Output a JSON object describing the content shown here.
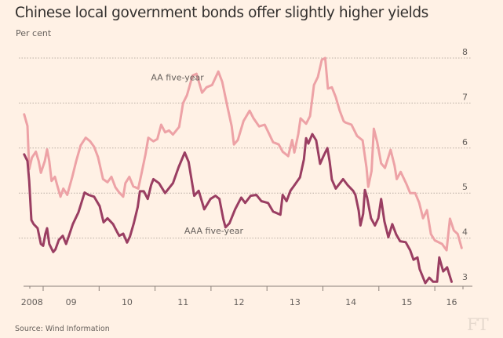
{
  "header": {
    "title": "Chinese local government bonds offer slightly higher yields",
    "subtitle": "Per cent"
  },
  "footer": {
    "source": "Source: Wind Information",
    "logo": "FT"
  },
  "chart_data": {
    "type": "line",
    "title": "Chinese local government bonds offer slightly higher yields",
    "subtitle": "Per cent",
    "xlabel": "",
    "ylabel": "Per cent",
    "ylim": [
      3,
      8
    ],
    "xlim": [
      2008.6,
      2016.75
    ],
    "y_ticks": [
      "3",
      "4",
      "5",
      "6",
      "7",
      "8"
    ],
    "y_tick_values": [
      3,
      4,
      5,
      6,
      7,
      8
    ],
    "x_ticks": [
      {
        "label": "2008",
        "at": 2008.8
      },
      {
        "label": "09",
        "at": 2009.5
      },
      {
        "label": "10",
        "at": 2010.5
      },
      {
        "label": "11",
        "at": 2011.5
      },
      {
        "label": "12",
        "at": 2012.5
      },
      {
        "label": "13",
        "at": 2013.5
      },
      {
        "label": "14",
        "at": 2014.5
      },
      {
        "label": "15",
        "at": 2015.5
      },
      {
        "label": "16",
        "at": 2016.3
      }
    ],
    "year_boundaries": [
      2009,
      2010,
      2011,
      2012,
      2013,
      2014,
      2015,
      2016
    ],
    "grid": true,
    "legend": "inline labels",
    "colors": {
      "AA five-year": "#eda2a6",
      "AAA five-year": "#9a3e62",
      "grid": "#b9aea4",
      "axis": "#8a8079"
    },
    "series": [
      {
        "name": "AA five-year",
        "label_at": [
          2011.4,
          7.5
        ],
        "points": [
          [
            2008.66,
            6.75
          ],
          [
            2008.72,
            6.49
          ],
          [
            2008.75,
            5.53
          ],
          [
            2008.8,
            5.79
          ],
          [
            2008.87,
            5.92
          ],
          [
            2008.92,
            5.71
          ],
          [
            2008.96,
            5.45
          ],
          [
            2009.03,
            5.71
          ],
          [
            2009.07,
            5.97
          ],
          [
            2009.11,
            5.71
          ],
          [
            2009.15,
            5.27
          ],
          [
            2009.21,
            5.36
          ],
          [
            2009.25,
            5.18
          ],
          [
            2009.31,
            4.92
          ],
          [
            2009.36,
            5.1
          ],
          [
            2009.43,
            4.96
          ],
          [
            2009.52,
            5.36
          ],
          [
            2009.59,
            5.71
          ],
          [
            2009.67,
            6.06
          ],
          [
            2009.76,
            6.23
          ],
          [
            2009.84,
            6.15
          ],
          [
            2009.91,
            6.03
          ],
          [
            2009.98,
            5.8
          ],
          [
            2010.07,
            5.31
          ],
          [
            2010.15,
            5.24
          ],
          [
            2010.22,
            5.36
          ],
          [
            2010.29,
            5.13
          ],
          [
            2010.36,
            5.01
          ],
          [
            2010.43,
            4.92
          ],
          [
            2010.47,
            5.22
          ],
          [
            2010.54,
            5.36
          ],
          [
            2010.61,
            5.15
          ],
          [
            2010.7,
            5.1
          ],
          [
            2010.76,
            5.45
          ],
          [
            2010.83,
            5.87
          ],
          [
            2010.88,
            6.23
          ],
          [
            2010.97,
            6.15
          ],
          [
            2011.04,
            6.2
          ],
          [
            2011.11,
            6.52
          ],
          [
            2011.18,
            6.35
          ],
          [
            2011.25,
            6.39
          ],
          [
            2011.32,
            6.3
          ],
          [
            2011.43,
            6.47
          ],
          [
            2011.5,
            7.0
          ],
          [
            2011.57,
            7.17
          ],
          [
            2011.67,
            7.61
          ],
          [
            2011.74,
            7.65
          ],
          [
            2011.84,
            7.23
          ],
          [
            2011.92,
            7.35
          ],
          [
            2012.02,
            7.4
          ],
          [
            2012.13,
            7.7
          ],
          [
            2012.2,
            7.47
          ],
          [
            2012.3,
            6.88
          ],
          [
            2012.37,
            6.48
          ],
          [
            2012.41,
            6.08
          ],
          [
            2012.48,
            6.18
          ],
          [
            2012.58,
            6.6
          ],
          [
            2012.69,
            6.83
          ],
          [
            2012.76,
            6.66
          ],
          [
            2012.86,
            6.48
          ],
          [
            2012.96,
            6.52
          ],
          [
            2013.04,
            6.31
          ],
          [
            2013.11,
            6.13
          ],
          [
            2013.21,
            6.08
          ],
          [
            2013.28,
            5.92
          ],
          [
            2013.38,
            5.82
          ],
          [
            2013.45,
            6.18
          ],
          [
            2013.49,
            5.9
          ],
          [
            2013.56,
            6.31
          ],
          [
            2013.6,
            6.66
          ],
          [
            2013.7,
            6.54
          ],
          [
            2013.77,
            6.71
          ],
          [
            2013.84,
            7.4
          ],
          [
            2013.91,
            7.58
          ],
          [
            2013.98,
            7.96
          ],
          [
            2014.04,
            8.0
          ],
          [
            2014.09,
            7.32
          ],
          [
            2014.16,
            7.35
          ],
          [
            2014.23,
            7.13
          ],
          [
            2014.3,
            6.83
          ],
          [
            2014.37,
            6.6
          ],
          [
            2014.4,
            6.57
          ],
          [
            2014.51,
            6.52
          ],
          [
            2014.61,
            6.27
          ],
          [
            2014.71,
            6.17
          ],
          [
            2014.78,
            5.56
          ],
          [
            2014.81,
            5.14
          ],
          [
            2014.87,
            5.49
          ],
          [
            2014.91,
            6.43
          ],
          [
            2014.97,
            6.13
          ],
          [
            2015.04,
            5.66
          ],
          [
            2015.11,
            5.56
          ],
          [
            2015.21,
            5.96
          ],
          [
            2015.28,
            5.61
          ],
          [
            2015.32,
            5.31
          ],
          [
            2015.39,
            5.47
          ],
          [
            2015.49,
            5.21
          ],
          [
            2015.56,
            5.0
          ],
          [
            2015.65,
            5.0
          ],
          [
            2015.72,
            4.79
          ],
          [
            2015.79,
            4.44
          ],
          [
            2015.86,
            4.62
          ],
          [
            2015.93,
            4.09
          ],
          [
            2016.0,
            3.95
          ],
          [
            2016.13,
            3.87
          ],
          [
            2016.21,
            3.73
          ],
          [
            2016.27,
            4.43
          ],
          [
            2016.34,
            4.17
          ],
          [
            2016.41,
            4.09
          ],
          [
            2016.48,
            3.78
          ]
        ]
      },
      {
        "name": "AAA five-year",
        "label_at": [
          2012.05,
          4.1
        ],
        "points": [
          [
            2008.66,
            5.86
          ],
          [
            2008.72,
            5.71
          ],
          [
            2008.75,
            5.27
          ],
          [
            2008.79,
            4.4
          ],
          [
            2008.83,
            4.31
          ],
          [
            2008.9,
            4.22
          ],
          [
            2008.96,
            3.87
          ],
          [
            2009.0,
            3.83
          ],
          [
            2009.04,
            4.1
          ],
          [
            2009.07,
            4.22
          ],
          [
            2009.11,
            3.87
          ],
          [
            2009.18,
            3.69
          ],
          [
            2009.22,
            3.75
          ],
          [
            2009.28,
            3.96
          ],
          [
            2009.35,
            4.05
          ],
          [
            2009.41,
            3.87
          ],
          [
            2009.46,
            4.05
          ],
          [
            2009.53,
            4.31
          ],
          [
            2009.63,
            4.57
          ],
          [
            2009.74,
            5.01
          ],
          [
            2009.81,
            4.96
          ],
          [
            2009.91,
            4.92
          ],
          [
            2010.01,
            4.71
          ],
          [
            2010.08,
            4.35
          ],
          [
            2010.15,
            4.44
          ],
          [
            2010.25,
            4.31
          ],
          [
            2010.32,
            4.14
          ],
          [
            2010.36,
            4.05
          ],
          [
            2010.43,
            4.1
          ],
          [
            2010.5,
            3.9
          ],
          [
            2010.55,
            4.03
          ],
          [
            2010.62,
            4.33
          ],
          [
            2010.69,
            4.69
          ],
          [
            2010.73,
            5.04
          ],
          [
            2010.8,
            5.04
          ],
          [
            2010.87,
            4.87
          ],
          [
            2010.93,
            5.18
          ],
          [
            2010.97,
            5.31
          ],
          [
            2011.07,
            5.22
          ],
          [
            2011.18,
            5.0
          ],
          [
            2011.32,
            5.22
          ],
          [
            2011.42,
            5.57
          ],
          [
            2011.53,
            5.9
          ],
          [
            2011.6,
            5.69
          ],
          [
            2011.7,
            4.94
          ],
          [
            2011.78,
            5.05
          ],
          [
            2011.88,
            4.64
          ],
          [
            2011.99,
            4.87
          ],
          [
            2012.08,
            4.94
          ],
          [
            2012.15,
            4.87
          ],
          [
            2012.22,
            4.42
          ],
          [
            2012.26,
            4.24
          ],
          [
            2012.33,
            4.33
          ],
          [
            2012.43,
            4.64
          ],
          [
            2012.54,
            4.9
          ],
          [
            2012.61,
            4.78
          ],
          [
            2012.71,
            4.94
          ],
          [
            2012.81,
            4.96
          ],
          [
            2012.9,
            4.82
          ],
          [
            2013.02,
            4.78
          ],
          [
            2013.11,
            4.59
          ],
          [
            2013.24,
            4.52
          ],
          [
            2013.28,
            4.96
          ],
          [
            2013.35,
            4.82
          ],
          [
            2013.42,
            5.05
          ],
          [
            2013.49,
            5.17
          ],
          [
            2013.59,
            5.35
          ],
          [
            2013.66,
            5.75
          ],
          [
            2013.7,
            6.22
          ],
          [
            2013.74,
            6.1
          ],
          [
            2013.81,
            6.31
          ],
          [
            2013.88,
            6.17
          ],
          [
            2013.95,
            5.65
          ],
          [
            2014.01,
            5.82
          ],
          [
            2014.08,
            6.0
          ],
          [
            2014.12,
            5.7
          ],
          [
            2014.16,
            5.3
          ],
          [
            2014.23,
            5.1
          ],
          [
            2014.36,
            5.31
          ],
          [
            2014.44,
            5.18
          ],
          [
            2014.54,
            5.05
          ],
          [
            2014.58,
            4.96
          ],
          [
            2014.64,
            4.61
          ],
          [
            2014.67,
            4.28
          ],
          [
            2014.72,
            4.54
          ],
          [
            2014.75,
            5.07
          ],
          [
            2014.79,
            4.9
          ],
          [
            2014.86,
            4.44
          ],
          [
            2014.93,
            4.28
          ],
          [
            2014.99,
            4.44
          ],
          [
            2015.04,
            4.87
          ],
          [
            2015.1,
            4.37
          ],
          [
            2015.17,
            4.02
          ],
          [
            2015.24,
            4.31
          ],
          [
            2015.31,
            4.08
          ],
          [
            2015.38,
            3.93
          ],
          [
            2015.48,
            3.91
          ],
          [
            2015.56,
            3.73
          ],
          [
            2015.62,
            3.52
          ],
          [
            2015.69,
            3.57
          ],
          [
            2015.73,
            3.31
          ],
          [
            2015.83,
            3.0
          ],
          [
            2015.9,
            3.12
          ],
          [
            2015.97,
            3.03
          ],
          [
            2016.04,
            3.03
          ],
          [
            2016.08,
            3.57
          ],
          [
            2016.15,
            3.26
          ],
          [
            2016.22,
            3.35
          ],
          [
            2016.3,
            3.03
          ]
        ]
      }
    ]
  }
}
